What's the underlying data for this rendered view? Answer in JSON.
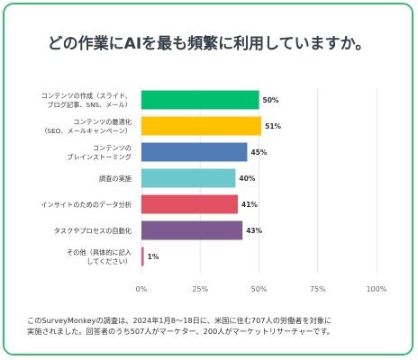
{
  "card": {
    "title": "どの作業にAIを最も頻繁に利用していますか。",
    "footnote_lines": [
      "このSurveyMonkeyの調査は、2024年1月8〜18日に、米国に住む707人の労働者を対象に",
      "実施されました。回答者のうち507人がマーケター、200人がマーケットリサーチャーです。"
    ]
  },
  "chart_data": {
    "type": "bar",
    "orientation": "horizontal",
    "title": "どの作業にAIを最も頻繁に利用していますか。",
    "categories": [
      [
        "コンテンツの作成（スライド、",
        "ブログ記事、SNS、メール）"
      ],
      [
        "コンテンツの最適化",
        "（SEO、メールキャンペーン）"
      ],
      [
        "コンテンツの",
        "ブレインストーミング"
      ],
      [
        "調査の実施"
      ],
      [
        "インサイトのためのデータ分析"
      ],
      [
        "タスクやプロセスの自動化"
      ],
      [
        "その他（具体的に記入",
        "してください）"
      ]
    ],
    "values": [
      50,
      51,
      45,
      40,
      41,
      43,
      1
    ],
    "value_labels": [
      "50%",
      "51%",
      "45%",
      "40%",
      "41%",
      "43%",
      "1%"
    ],
    "colors": [
      "#00bf6f",
      "#ffc100",
      "#507cb6",
      "#6bc8cd",
      "#e05262",
      "#7d5a8f",
      "#d25f90"
    ],
    "xlim": [
      0,
      100
    ],
    "xticks": [
      0,
      25,
      50,
      75,
      100
    ],
    "xtick_labels": [
      "0%",
      "25%",
      "50%",
      "75%",
      "100%"
    ],
    "grid": true,
    "legend": "none"
  }
}
